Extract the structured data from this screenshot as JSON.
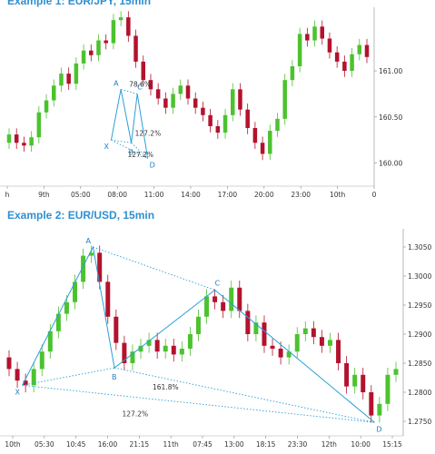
{
  "colors": {
    "up": "#4cc22f",
    "down": "#b3122e",
    "pattern": "#2a9fd6",
    "heading": "#2f8fd0",
    "axis": "#555555"
  },
  "chart_data": [
    {
      "type": "candlestick",
      "title": "Example 1: EUR/JPY, 15min",
      "x_ticks": [
        "h",
        "9th",
        "05:00",
        "08:00",
        "11:00",
        "14:00",
        "17:00",
        "20:00",
        "23:00",
        "10th",
        "0"
      ],
      "y_ticks": [
        160.0,
        160.5,
        161.0
      ],
      "ylim": [
        159.75,
        161.65
      ],
      "series": [
        {
          "o": 160.22,
          "c": 160.31
        },
        {
          "o": 160.31,
          "c": 160.22
        },
        {
          "o": 160.22,
          "c": 160.19
        },
        {
          "o": 160.19,
          "c": 160.28
        },
        {
          "o": 160.28,
          "c": 160.55
        },
        {
          "o": 160.55,
          "c": 160.68
        },
        {
          "o": 160.68,
          "c": 160.84
        },
        {
          "o": 160.84,
          "c": 160.97
        },
        {
          "o": 160.97,
          "c": 160.86
        },
        {
          "o": 160.86,
          "c": 161.08
        },
        {
          "o": 161.08,
          "c": 161.22
        },
        {
          "o": 161.22,
          "c": 161.17
        },
        {
          "o": 161.17,
          "c": 161.33
        },
        {
          "o": 161.33,
          "c": 161.3
        },
        {
          "o": 161.3,
          "c": 161.55
        },
        {
          "o": 161.55,
          "c": 161.58
        },
        {
          "o": 161.58,
          "c": 161.38
        },
        {
          "o": 161.38,
          "c": 161.1
        },
        {
          "o": 161.1,
          "c": 160.9
        },
        {
          "o": 160.9,
          "c": 160.8
        },
        {
          "o": 160.8,
          "c": 160.7
        },
        {
          "o": 160.7,
          "c": 160.6
        },
        {
          "o": 160.6,
          "c": 160.75
        },
        {
          "o": 160.75,
          "c": 160.84
        },
        {
          "o": 160.84,
          "c": 160.7
        },
        {
          "o": 160.7,
          "c": 160.6
        },
        {
          "o": 160.6,
          "c": 160.52
        },
        {
          "o": 160.52,
          "c": 160.4
        },
        {
          "o": 160.4,
          "c": 160.33
        },
        {
          "o": 160.33,
          "c": 160.52
        },
        {
          "o": 160.52,
          "c": 160.8
        },
        {
          "o": 160.8,
          "c": 160.58
        },
        {
          "o": 160.58,
          "c": 160.38
        },
        {
          "o": 160.38,
          "c": 160.22
        },
        {
          "o": 160.22,
          "c": 160.1
        },
        {
          "o": 160.1,
          "c": 160.35
        },
        {
          "o": 160.35,
          "c": 160.48
        },
        {
          "o": 160.48,
          "c": 160.9
        },
        {
          "o": 160.9,
          "c": 161.05
        },
        {
          "o": 161.05,
          "c": 161.4
        },
        {
          "o": 161.4,
          "c": 161.33
        },
        {
          "o": 161.33,
          "c": 161.48
        },
        {
          "o": 161.48,
          "c": 161.35
        },
        {
          "o": 161.35,
          "c": 161.2
        },
        {
          "o": 161.2,
          "c": 161.1
        },
        {
          "o": 161.1,
          "c": 161.0
        },
        {
          "o": 161.0,
          "c": 161.18
        },
        {
          "o": 161.18,
          "c": 161.28
        },
        {
          "o": 161.28,
          "c": 161.15
        }
      ],
      "pattern": {
        "points": [
          {
            "label": "X",
            "x": 13.7,
            "y": 160.25
          },
          {
            "label": "A",
            "x": 15.0,
            "y": 160.8
          },
          {
            "label": "B",
            "x": 16.4,
            "y": 160.22
          },
          {
            "label": "C",
            "x": 17.2,
            "y": 160.75
          },
          {
            "label": "D",
            "x": 18.6,
            "y": 160.05
          }
        ],
        "ratios": [
          "78.6%",
          "127.2%",
          "127.2%"
        ]
      }
    },
    {
      "type": "candlestick",
      "title": "Example 2: EUR/USD, 15min",
      "x_ticks": [
        "10th",
        "05:30",
        "10:45",
        "16:00",
        "21:15",
        "11th",
        "07:45",
        "13:00",
        "18:15",
        "23:30",
        "12th",
        "10:00",
        "15:15"
      ],
      "y_ticks": [
        1.275,
        1.28,
        1.285,
        1.29,
        1.295,
        1.3,
        1.305
      ],
      "ylim": [
        1.2725,
        1.3075
      ],
      "series": [
        {
          "o": 1.286,
          "c": 1.284
        },
        {
          "o": 1.284,
          "c": 1.282
        },
        {
          "o": 1.282,
          "c": 1.2812
        },
        {
          "o": 1.2812,
          "c": 1.284
        },
        {
          "o": 1.284,
          "c": 1.287
        },
        {
          "o": 1.287,
          "c": 1.2905
        },
        {
          "o": 1.2905,
          "c": 1.2935
        },
        {
          "o": 1.2935,
          "c": 1.2955
        },
        {
          "o": 1.2955,
          "c": 1.299
        },
        {
          "o": 1.299,
          "c": 1.3035
        },
        {
          "o": 1.3035,
          "c": 1.304
        },
        {
          "o": 1.304,
          "c": 1.299
        },
        {
          "o": 1.299,
          "c": 1.293
        },
        {
          "o": 1.293,
          "c": 1.2885
        },
        {
          "o": 1.2885,
          "c": 1.285
        },
        {
          "o": 1.285,
          "c": 1.287
        },
        {
          "o": 1.287,
          "c": 1.288
        },
        {
          "o": 1.288,
          "c": 1.289
        },
        {
          "o": 1.289,
          "c": 1.287
        },
        {
          "o": 1.287,
          "c": 1.288
        },
        {
          "o": 1.288,
          "c": 1.2865
        },
        {
          "o": 1.2865,
          "c": 1.2875
        },
        {
          "o": 1.2875,
          "c": 1.29
        },
        {
          "o": 1.29,
          "c": 1.293
        },
        {
          "o": 1.293,
          "c": 1.2965
        },
        {
          "o": 1.2965,
          "c": 1.2955
        },
        {
          "o": 1.2955,
          "c": 1.294
        },
        {
          "o": 1.294,
          "c": 1.298
        },
        {
          "o": 1.298,
          "c": 1.294
        },
        {
          "o": 1.294,
          "c": 1.29
        },
        {
          "o": 1.29,
          "c": 1.292
        },
        {
          "o": 1.292,
          "c": 1.288
        },
        {
          "o": 1.288,
          "c": 1.2875
        },
        {
          "o": 1.2875,
          "c": 1.286
        },
        {
          "o": 1.286,
          "c": 1.287
        },
        {
          "o": 1.287,
          "c": 1.29
        },
        {
          "o": 1.29,
          "c": 1.291
        },
        {
          "o": 1.291,
          "c": 1.2895
        },
        {
          "o": 1.2895,
          "c": 1.288
        },
        {
          "o": 1.288,
          "c": 1.289
        },
        {
          "o": 1.289,
          "c": 1.285
        },
        {
          "o": 1.285,
          "c": 1.281
        },
        {
          "o": 1.281,
          "c": 1.283
        },
        {
          "o": 1.283,
          "c": 1.28
        },
        {
          "o": 1.28,
          "c": 1.276
        },
        {
          "o": 1.276,
          "c": 1.278
        },
        {
          "o": 1.278,
          "c": 1.283
        },
        {
          "o": 1.283,
          "c": 1.284
        }
      ],
      "pattern": {
        "points": [
          {
            "label": "X",
            "x": 1.6,
            "y": 1.2812
          },
          {
            "label": "A",
            "x": 10.2,
            "y": 1.305
          },
          {
            "label": "B",
            "x": 12.8,
            "y": 1.2842
          },
          {
            "label": "C",
            "x": 25.0,
            "y": 1.2976
          },
          {
            "label": "D",
            "x": 44.4,
            "y": 1.2748
          }
        ],
        "ratios": [
          "161.8%",
          "127.2%"
        ]
      }
    }
  ]
}
